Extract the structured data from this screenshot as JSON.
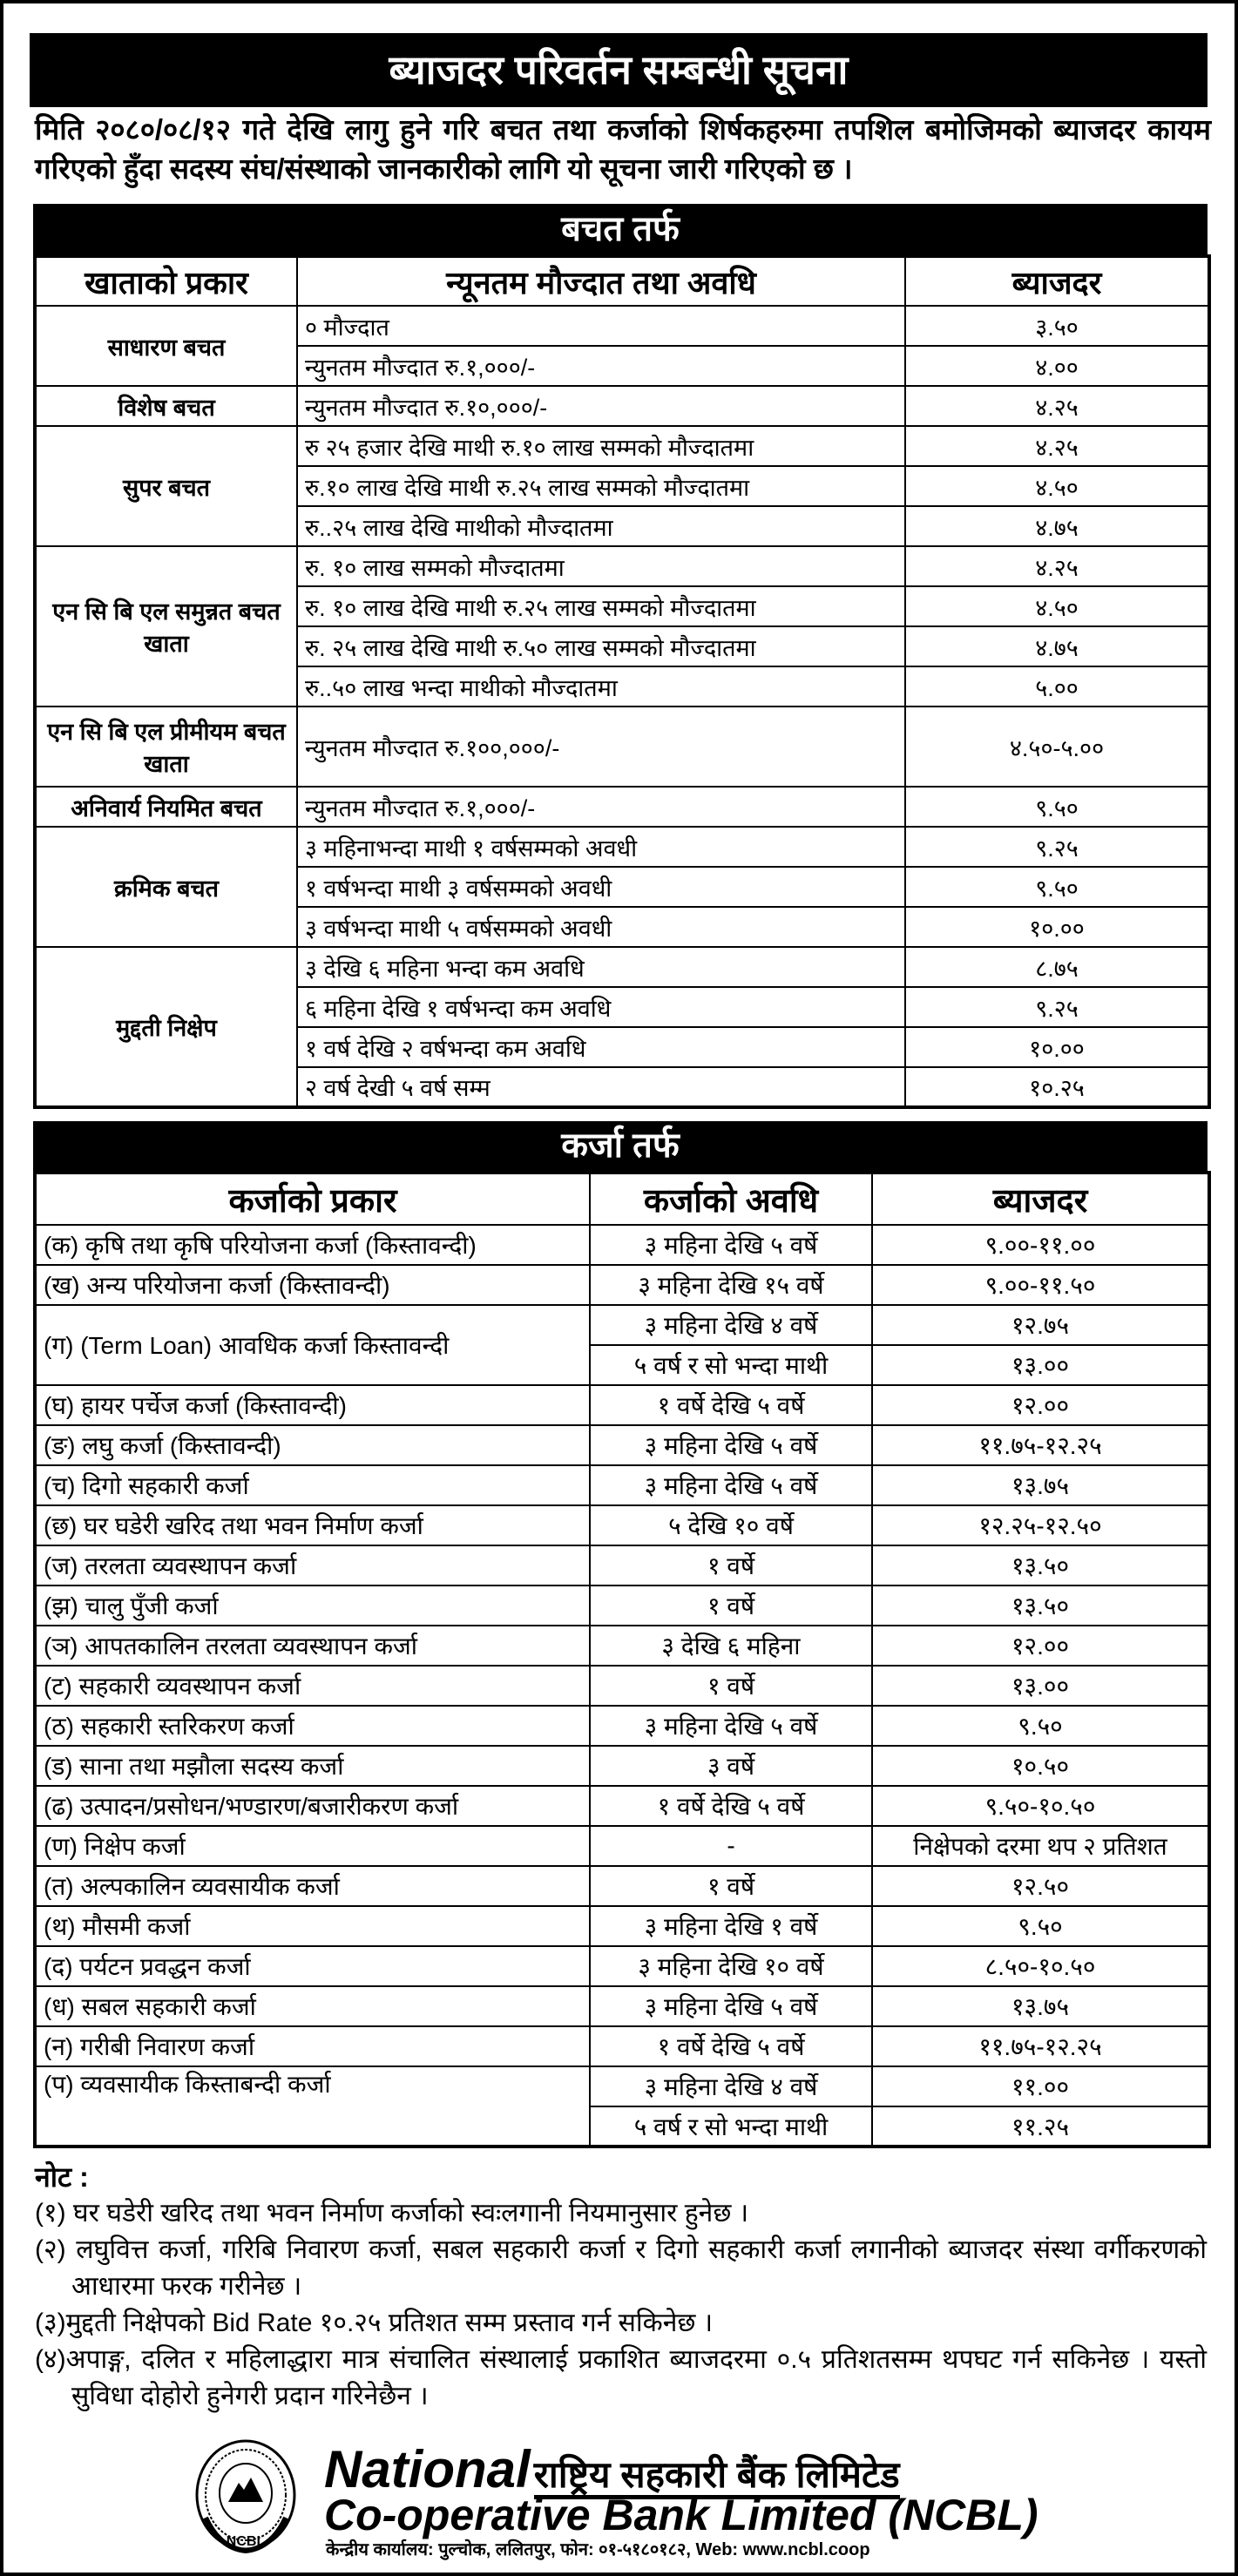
{
  "title": "ब्याजदर परिवर्तन सम्बन्धी सूचना",
  "intro": "मिति २०८०/०८/१२ गते देखि लागु हुने गरि बचत तथा कर्जाको शिर्षकहरुमा तपशिल बमोजिमको ब्याजदर कायम गरिएको हुँदा सदस्य संघ/संस्थाको जानकारीको लागि यो सूचना जारी गरिएको छ ।",
  "savings": {
    "heading": "बचत तर्फ",
    "columns": [
      "खाताको प्रकार",
      "न्यूनतम मौज्दात तथा अवधि",
      "ब्याजदर"
    ],
    "groups": [
      {
        "type": "साधारण बचत",
        "rows": [
          {
            "desc": "० मौज्दात",
            "rate": "३.५०"
          },
          {
            "desc": "न्युनतम मौज्दात रु.१,०००/-",
            "rate": "४.००"
          }
        ]
      },
      {
        "type": "विशेष बचत",
        "rows": [
          {
            "desc": "न्युनतम मौज्दात रु.१०,०००/-",
            "rate": "४.२५"
          }
        ]
      },
      {
        "type": "सुपर बचत",
        "rows": [
          {
            "desc": "रु २५ हजार देखि माथी रु.१० लाख सम्मको मौज्दातमा",
            "rate": "४.२५"
          },
          {
            "desc": "रु.१० लाख देखि माथी रु.२५ लाख सम्मको मौज्दातमा",
            "rate": "४.५०"
          },
          {
            "desc": "रु..२५ लाख देखि माथीको मौज्दातमा",
            "rate": "४.७५"
          }
        ]
      },
      {
        "type": "एन सि बि एल समुन्नत बचत खाता",
        "rows": [
          {
            "desc": "रु. १० लाख सम्मको मौज्दातमा",
            "rate": "४.२५"
          },
          {
            "desc": "रु. १० लाख देखि माथी रु.२५ लाख सम्मको मौज्दातमा",
            "rate": "४.५०"
          },
          {
            "desc": "रु. २५ लाख देखि माथी रु.५० लाख सम्मको मौज्दातमा",
            "rate": "४.७५"
          },
          {
            "desc": "रु..५० लाख भन्दा माथीको मौज्दातमा",
            "rate": "५.००"
          }
        ]
      },
      {
        "type": "एन सि बि एल प्रीमीयम बचत खाता",
        "tall": true,
        "rows": [
          {
            "desc": "न्युनतम मौज्दात रु.१००,०००/-",
            "rate": "४.५०-५.००"
          }
        ]
      },
      {
        "type": "अनिवार्य नियमित बचत",
        "rows": [
          {
            "desc": "न्युनतम मौज्दात रु.१,०००/-",
            "rate": "९.५०"
          }
        ]
      },
      {
        "type": "क्रमिक बचत",
        "rows": [
          {
            "desc": "३ महिनाभन्दा माथी १ वर्षसम्मको अवधी",
            "rate": "९.२५"
          },
          {
            "desc": "१ वर्षभन्दा माथी ३ वर्षसम्मको अवधी",
            "rate": "९.५०"
          },
          {
            "desc": "३ वर्षभन्दा माथी ५ वर्षसम्मको अवधी",
            "rate": "१०.००"
          }
        ]
      },
      {
        "type": "मुद्दती निक्षेप",
        "rows": [
          {
            "desc": "३ देखि ६ महिना भन्दा कम अवधि",
            "rate": "८.७५"
          },
          {
            "desc": "६ महिना देखि १ वर्षभन्दा कम अवधि",
            "rate": "९.२५"
          },
          {
            "desc": "१ वर्ष देखि २ वर्षभन्दा कम अवधि",
            "rate": "१०.००"
          },
          {
            "desc": "२ वर्ष देखी ५ वर्ष सम्म",
            "rate": "१०.२५"
          }
        ]
      }
    ]
  },
  "loans": {
    "heading": "कर्जा तर्फ",
    "columns": [
      "कर्जाको प्रकार",
      "कर्जाको अवधि",
      "ब्याजदर"
    ],
    "groups": [
      {
        "type": "(क) कृषि तथा कृषि परियोजना कर्जा (किस्तावन्दी)",
        "rows": [
          {
            "term": "३ महिना देखि ५ वर्षे",
            "rate": "९.००-११.००"
          }
        ]
      },
      {
        "type": "(ख) अन्य परियोजना कर्जा (किस्तावन्दी)",
        "rows": [
          {
            "term": "३ महिना देखि १५ वर्षे",
            "rate": "९.००-११.५०"
          }
        ]
      },
      {
        "type": "(ग) (Term Loan) आवधिक कर्जा किस्तावन्दी",
        "rows": [
          {
            "term": "३ महिना देखि ४ वर्षे",
            "rate": "१२.७५"
          },
          {
            "term": "५ वर्ष र सो भन्दा माथी",
            "rate": "१३.००"
          }
        ]
      },
      {
        "type": "(घ) हायर पर्चेज कर्जा (किस्तावन्दी)",
        "rows": [
          {
            "term": "१ वर्षे देखि ५ वर्षे",
            "rate": "१२.००"
          }
        ]
      },
      {
        "type": "(ङ) लघु कर्जा (किस्तावन्दी)",
        "rows": [
          {
            "term": "३ महिना देखि ५ वर्षे",
            "rate": "११.७५-१२.२५"
          }
        ]
      },
      {
        "type": "(च) दिगो सहकारी कर्जा",
        "rows": [
          {
            "term": "३ महिना देखि ५ वर्षे",
            "rate": "१३.७५"
          }
        ]
      },
      {
        "type": "(छ) घर घडेरी खरिद तथा भवन निर्माण कर्जा",
        "rows": [
          {
            "term": "५ देखि १० वर्षे",
            "rate": "१२.२५-१२.५०"
          }
        ]
      },
      {
        "type": "(ज) तरलता व्यवस्थापन कर्जा",
        "rows": [
          {
            "term": "१ वर्षे",
            "rate": "१३.५०"
          }
        ]
      },
      {
        "type": "(झ) चालु पुँजी कर्जा",
        "rows": [
          {
            "term": "१ वर्षे",
            "rate": "१३.५०"
          }
        ]
      },
      {
        "type": "(ञ) आपतकालिन तरलता व्यवस्थापन कर्जा",
        "rows": [
          {
            "term": "३ देखि ६ महिना",
            "rate": "१२.००"
          }
        ]
      },
      {
        "type": "(ट) सहकारी व्यवस्थापन कर्जा",
        "rows": [
          {
            "term": "१ वर्षे",
            "rate": "१३.००"
          }
        ]
      },
      {
        "type": "(ठ) सहकारी स्तरिकरण कर्जा",
        "rows": [
          {
            "term": "३ महिना देखि ५ वर्षे",
            "rate": "९.५०"
          }
        ]
      },
      {
        "type": "(ड) साना तथा मझौला सदस्य कर्जा",
        "rows": [
          {
            "term": "३ वर्षे",
            "rate": "१०.५०"
          }
        ]
      },
      {
        "type": "(ढ) उत्पादन/प्रसोधन/भण्डारण/बजारीकरण कर्जा",
        "rows": [
          {
            "term": "१ वर्षे देखि ५ वर्षे",
            "rate": "९.५०-१०.५०"
          }
        ]
      },
      {
        "type": "(ण) निक्षेप कर्जा",
        "rows": [
          {
            "term": "-",
            "rate": "निक्षेपको दरमा थप २ प्रतिशत"
          }
        ]
      },
      {
        "type": "(त) अल्पकालिन व्यवसायीक कर्जा",
        "rows": [
          {
            "term": "१ वर्षे",
            "rate": "१२.५०"
          }
        ]
      },
      {
        "type": "(थ) मौसमी कर्जा",
        "rows": [
          {
            "term": "३ महिना देखि १ वर्षे",
            "rate": "९.५०"
          }
        ]
      },
      {
        "type": "(द) पर्यटन प्रवद्धन कर्जा",
        "rows": [
          {
            "term": "३ महिना देखि १० वर्षे",
            "rate": "८.५०-१०.५०"
          }
        ]
      },
      {
        "type": "(ध) सबल सहकारी कर्जा",
        "rows": [
          {
            "term": "३ महिना देखि ५ वर्षे",
            "rate": "१३.७५"
          }
        ]
      },
      {
        "type": "(न) गरीबी निवारण कर्जा",
        "rows": [
          {
            "term": "१ वर्षे देखि ५ वर्षे",
            "rate": "११.७५-१२.२५"
          }
        ]
      },
      {
        "type": "(प) व्यवसायीक किस्ताबन्दी कर्जा",
        "top": true,
        "rows": [
          {
            "term": "३ महिना देखि ४ वर्षे",
            "rate": "११.००"
          },
          {
            "term": "५ वर्ष र सो भन्दा माथी",
            "rate": "११.२५"
          }
        ]
      }
    ]
  },
  "notes": {
    "heading": "नोट :",
    "items": [
      "(१) घर घडेरी खरिद तथा भवन निर्माण कर्जाको स्वःलगानी नियमानुसार हुनेछ ।",
      "(२) लघुवित्त कर्जा, गरिबि निवारण कर्जा, सबल सहकारी कर्जा र दिगो सहकारी कर्जा लगानीको ब्याजदर संस्था वर्गीकरणको आधारमा फरक गरीनेछ ।",
      "(३)मुद्दती निक्षेपको Bid Rate १०.२५ प्रतिशत सम्म प्रस्ताव गर्न सकिनेछ ।",
      "(४)अपाङ्ग, दलित र महिलाद्धारा मात्र संचालित संस्थालाई प्रकाशित ब्याजदरमा ०.५ प्रतिशतसम्म थपघट गर्न सकिनेछ । यस्तो सुविधा दोहोरो हुनेगरी प्रदान गरिनेछैन ।"
    ]
  },
  "footer": {
    "name_en_1": "National",
    "name_np": "राष्ट्रिय सहकारी बैंक लिमिटेड",
    "name_en_2": "Co-operative Bank Limited (NCBL)",
    "address": "केन्द्रीय कार्यालय: पुल्चोक, ललितपुर, फोन: ०१-५१८०१८२, Web: www.ncbl.coop",
    "seal_text": "NCBL"
  }
}
